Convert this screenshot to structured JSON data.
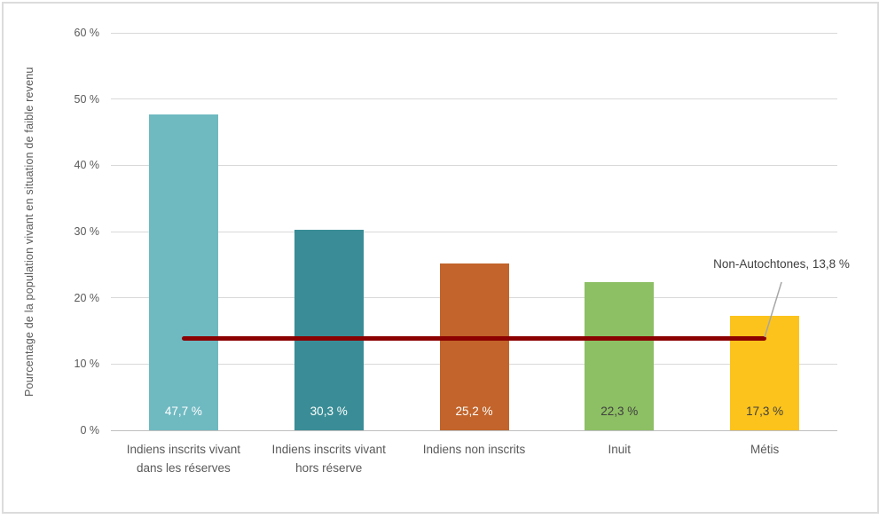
{
  "chart_data": {
    "type": "bar",
    "title": "",
    "xlabel": "",
    "ylabel": "Pourcentage de la population vivant en situation de faible revenu",
    "ylim": [
      0,
      60
    ],
    "ytick_step": 10,
    "yticks": [
      "0 %",
      "10 %",
      "20 %",
      "30 %",
      "40 %",
      "50 %",
      "60 %"
    ],
    "grid": true,
    "legend_position": "none",
    "categories": [
      "Indiens inscrits vivant dans les réserves",
      "Indiens inscrits vivant hors réserve",
      "Indiens non inscrits",
      "Inuit",
      "Métis"
    ],
    "category_lines": [
      [
        "Indiens inscrits vivant",
        "dans les réserves"
      ],
      [
        "Indiens inscrits vivant",
        "hors réserve"
      ],
      [
        "Indiens non inscrits"
      ],
      [
        "Inuit"
      ],
      [
        "Métis"
      ]
    ],
    "values": [
      47.7,
      30.3,
      25.2,
      22.3,
      17.3
    ],
    "value_labels": [
      "47,7 %",
      "30,3 %",
      "25,2 %",
      "22,3 %",
      "17,3 %"
    ],
    "bar_colors": [
      "#6FB9C1",
      "#3A8D96",
      "#C2642B",
      "#8DBF64",
      "#FBC31C"
    ],
    "value_label_colors": [
      "#FFFFFF",
      "#FFFFFF",
      "#FFFFFF",
      "#3F3F3F",
      "#3F3F3F"
    ],
    "reference_line": {
      "label": "Non-Autochtones, 13,8 %",
      "value": 13.8,
      "color": "#8B0000",
      "leader_color": "#A6A6A6"
    },
    "colors": {
      "gridline": "#D9D9D9",
      "axis_line": "#BFBFBF",
      "tick_text": "#595959",
      "annotation_text": "#404040"
    }
  }
}
